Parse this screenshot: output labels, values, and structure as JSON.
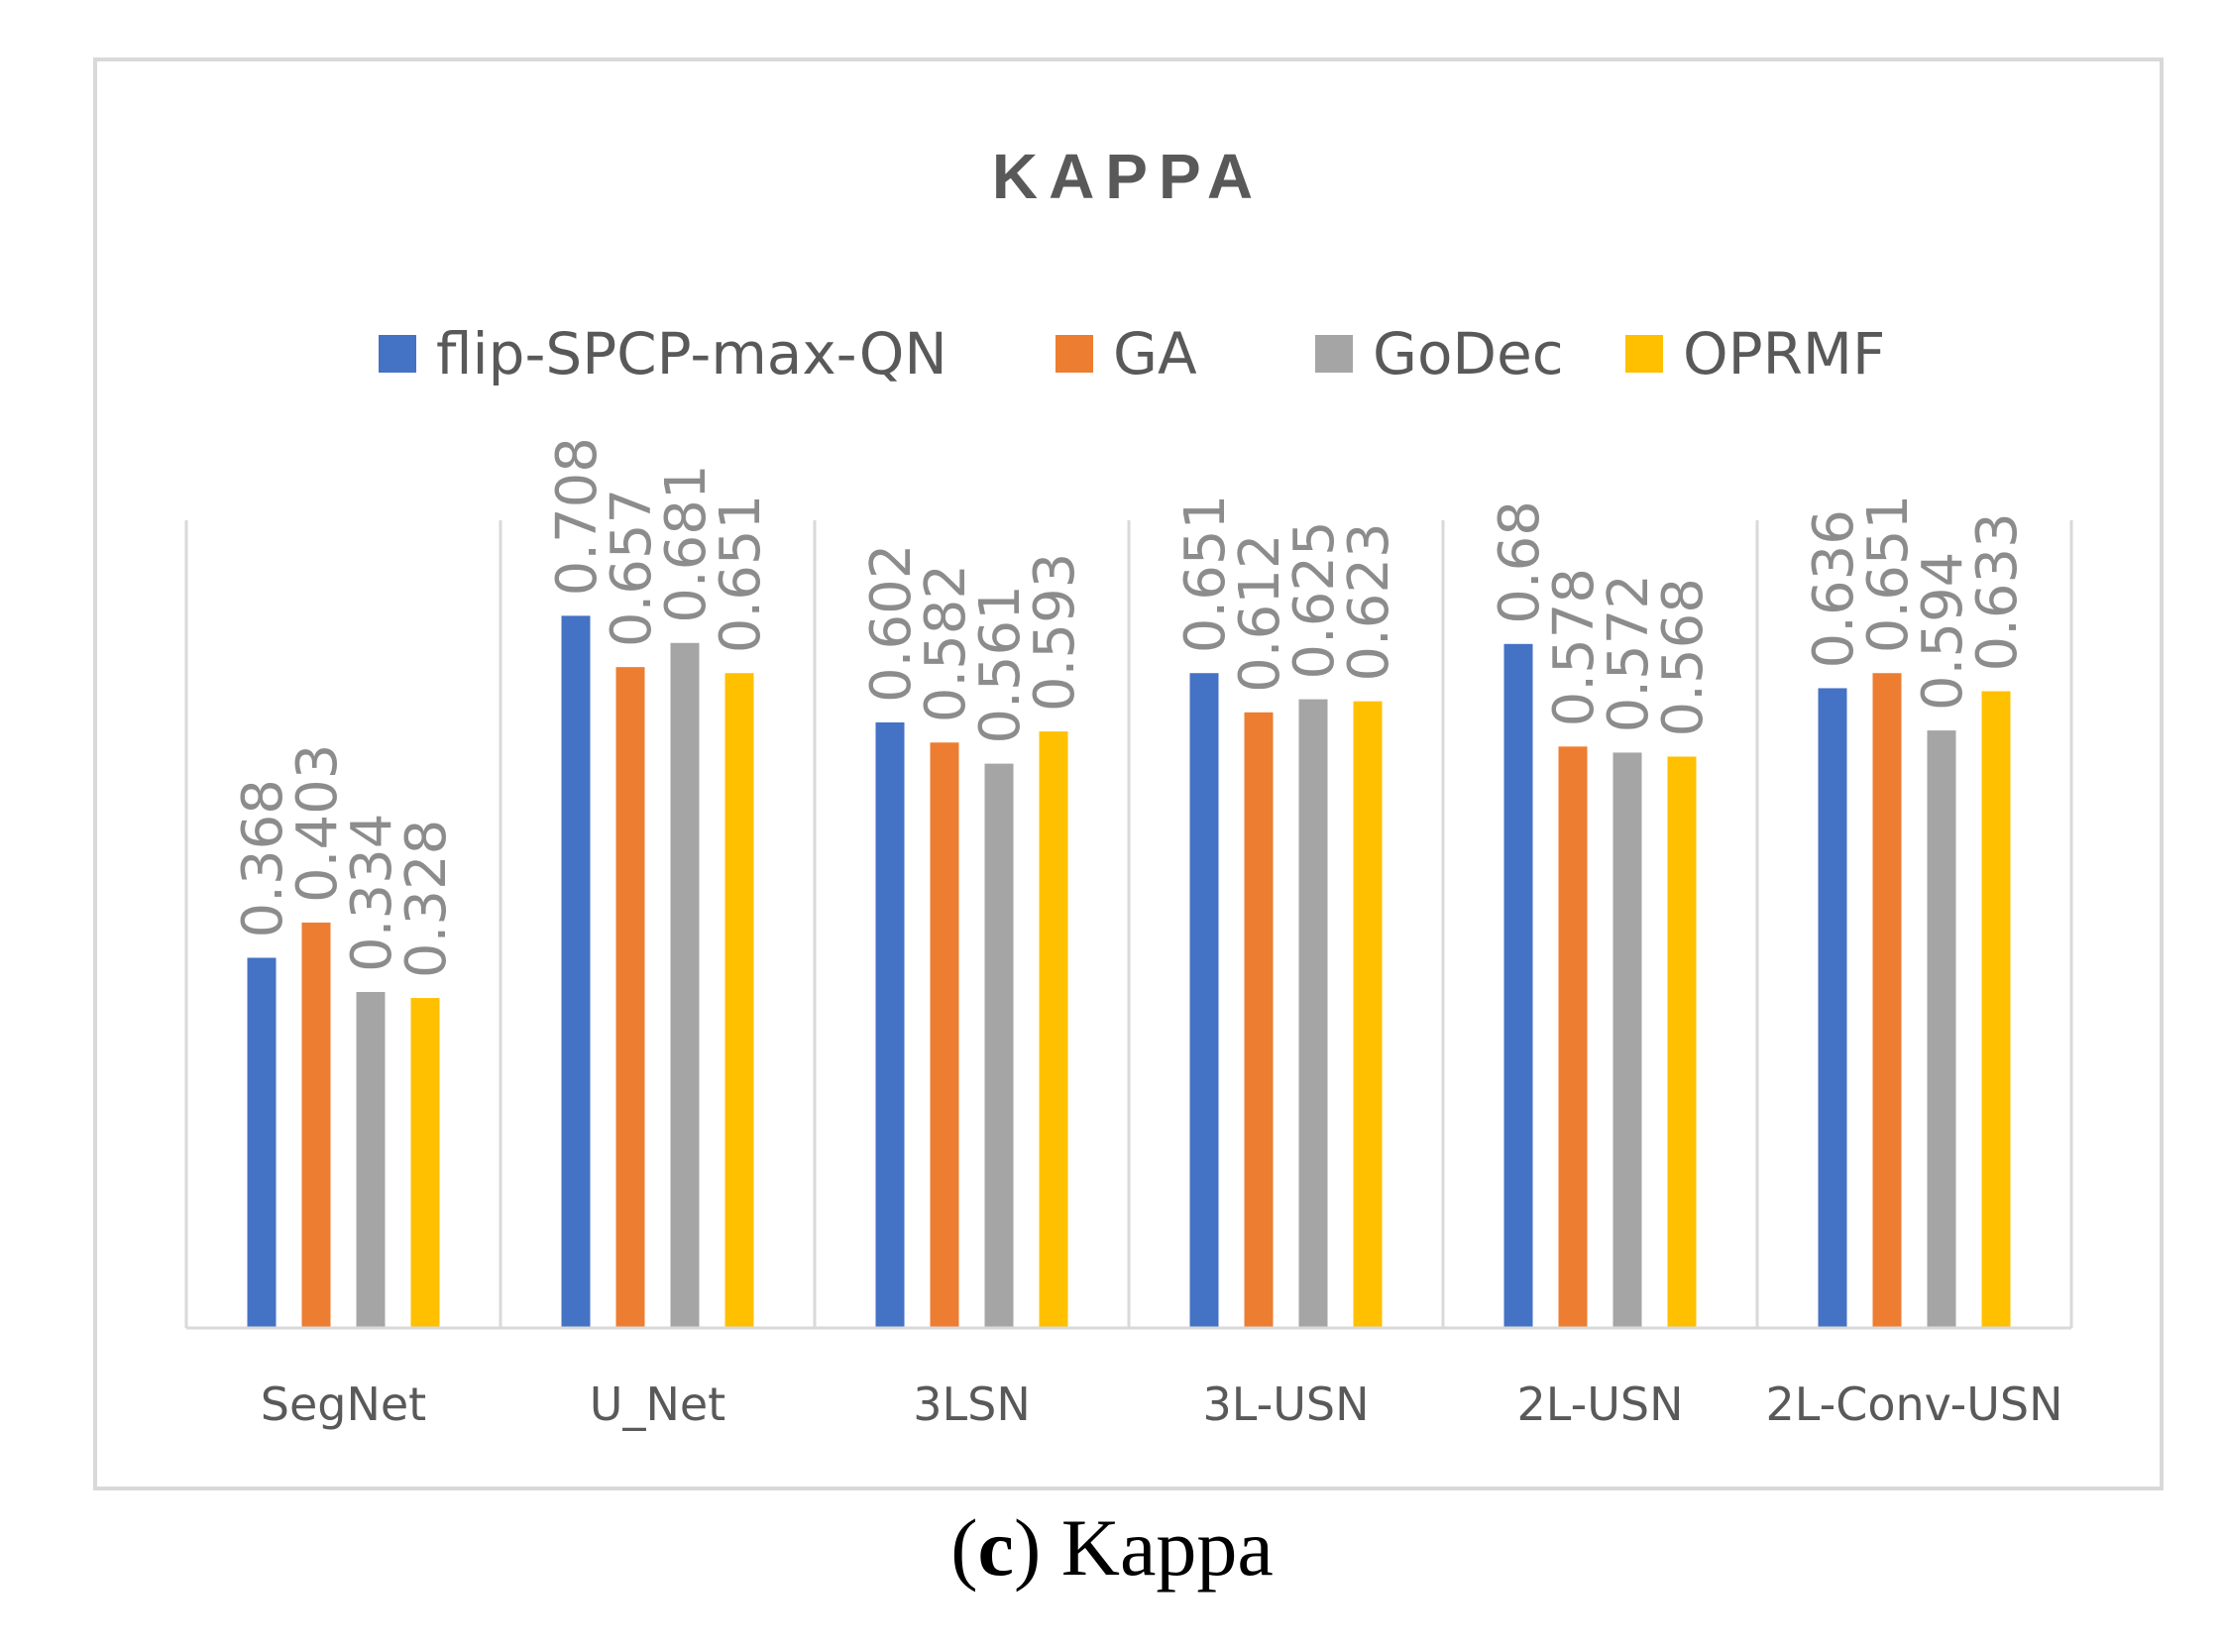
{
  "caption": {
    "letter": "c",
    "text": "Kappa"
  },
  "chart_data": {
    "type": "bar",
    "title": "KAPPA",
    "xlabel": "",
    "ylabel": "",
    "ylim": [
      0,
      0.8
    ],
    "grid": "vertical separators between categories",
    "legend_position": "top",
    "categories": [
      "SegNet",
      "U_Net",
      "3LSN",
      "3L-USN",
      "2L-USN",
      "2L-Conv-USN"
    ],
    "series": [
      {
        "name": "flip-SPCP-max-QN",
        "color": "#4472C4",
        "values": [
          0.368,
          0.708,
          0.602,
          0.651,
          0.68,
          0.636
        ]
      },
      {
        "name": "GA",
        "color": "#ED7D31",
        "values": [
          0.403,
          0.657,
          0.582,
          0.612,
          0.578,
          0.651
        ]
      },
      {
        "name": "GoDec",
        "color": "#A5A5A5",
        "values": [
          0.334,
          0.681,
          0.561,
          0.625,
          0.572,
          0.594
        ]
      },
      {
        "name": "OPRMF",
        "color": "#FFC000",
        "values": [
          0.328,
          0.651,
          0.593,
          0.623,
          0.568,
          0.633
        ]
      }
    ]
  }
}
